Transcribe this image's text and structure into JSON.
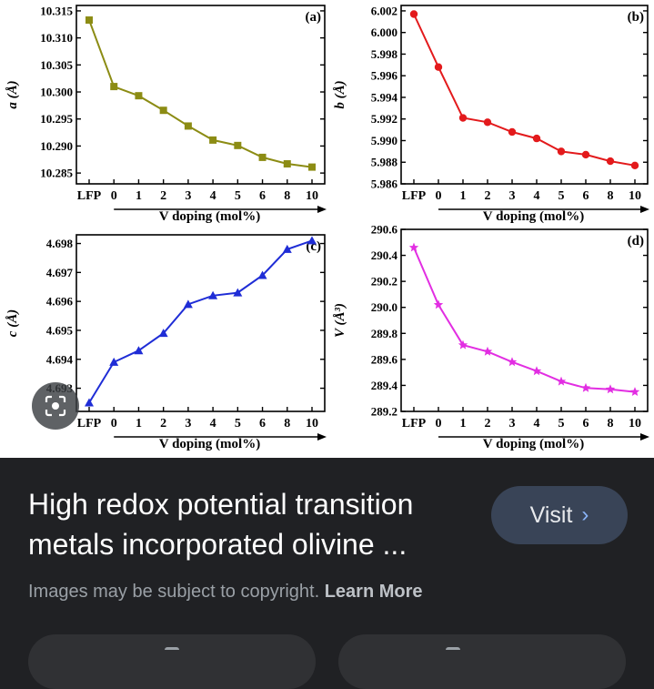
{
  "caption": {
    "title": "High redox potential transition metals incorporated olivine ..."
  },
  "actions": {
    "visit_label": "Visit",
    "visit_icon": "chevron-right-icon"
  },
  "notice": {
    "text": "Images may be subject to copyright.",
    "learn_more": "Learn More"
  },
  "lens": {
    "icon": "lens-icon"
  },
  "bottom_bar": {
    "left_icon": "share-icon",
    "right_icon": "save-icon"
  },
  "chart_data": [
    {
      "type": "line",
      "panel_label": "(a)",
      "xlabel": "V doping (mol%)",
      "ylabel": "a (Å)",
      "categories": [
        "LFP",
        "0",
        "1",
        "2",
        "3",
        "4",
        "5",
        "6",
        "8",
        "10"
      ],
      "values": [
        10.3133,
        10.301,
        10.2993,
        10.2966,
        10.2937,
        10.2911,
        10.2901,
        10.2879,
        10.2867,
        10.2861
      ],
      "yticks": [
        "10.285",
        "10.290",
        "10.295",
        "10.300",
        "10.305",
        "10.310",
        "10.315"
      ],
      "ylim": [
        10.283,
        10.316
      ],
      "color": "#8c8c14",
      "marker": "square"
    },
    {
      "type": "line",
      "panel_label": "(b)",
      "xlabel": "V doping (mol%)",
      "ylabel": "b (Å)",
      "categories": [
        "LFP",
        "0",
        "1",
        "2",
        "3",
        "4",
        "5",
        "6",
        "8",
        "10"
      ],
      "values": [
        6.0017,
        5.9968,
        5.9921,
        5.9917,
        5.9908,
        5.9902,
        5.989,
        5.9887,
        5.9881,
        5.9877
      ],
      "yticks": [
        "5.986",
        "5.988",
        "5.990",
        "5.992",
        "5.994",
        "5.996",
        "5.998",
        "6.000",
        "6.002"
      ],
      "ylim": [
        5.986,
        6.0025
      ],
      "color": "#e31a1c",
      "marker": "circle"
    },
    {
      "type": "line",
      "panel_label": "(c)",
      "xlabel": "V doping (mol%)",
      "ylabel": "c (Å)",
      "categories": [
        "LFP",
        "0",
        "1",
        "2",
        "3",
        "4",
        "5",
        "6",
        "8",
        "10"
      ],
      "values": [
        4.6925,
        4.6939,
        4.6943,
        4.6949,
        4.6959,
        4.6962,
        4.6963,
        4.6969,
        4.6978,
        4.6981
      ],
      "yticks": [
        "4.693",
        "4.694",
        "4.695",
        "4.696",
        "4.697",
        "4.698"
      ],
      "ylim": [
        4.6922,
        4.6983
      ],
      "color": "#1f2dd6",
      "marker": "triangle"
    },
    {
      "type": "line",
      "panel_label": "(d)",
      "xlabel": "V doping (mol%)",
      "ylabel": "V (Å³)",
      "categories": [
        "LFP",
        "0",
        "1",
        "2",
        "3",
        "4",
        "5",
        "6",
        "8",
        "10"
      ],
      "values": [
        290.46,
        290.02,
        289.71,
        289.66,
        289.58,
        289.51,
        289.43,
        289.38,
        289.37,
        289.35
      ],
      "yticks": [
        "289.2",
        "289.4",
        "289.6",
        "289.8",
        "290.0",
        "290.2",
        "290.4",
        "290.6"
      ],
      "ylim": [
        289.2,
        290.6
      ],
      "color": "#e22ee2",
      "marker": "star"
    }
  ]
}
